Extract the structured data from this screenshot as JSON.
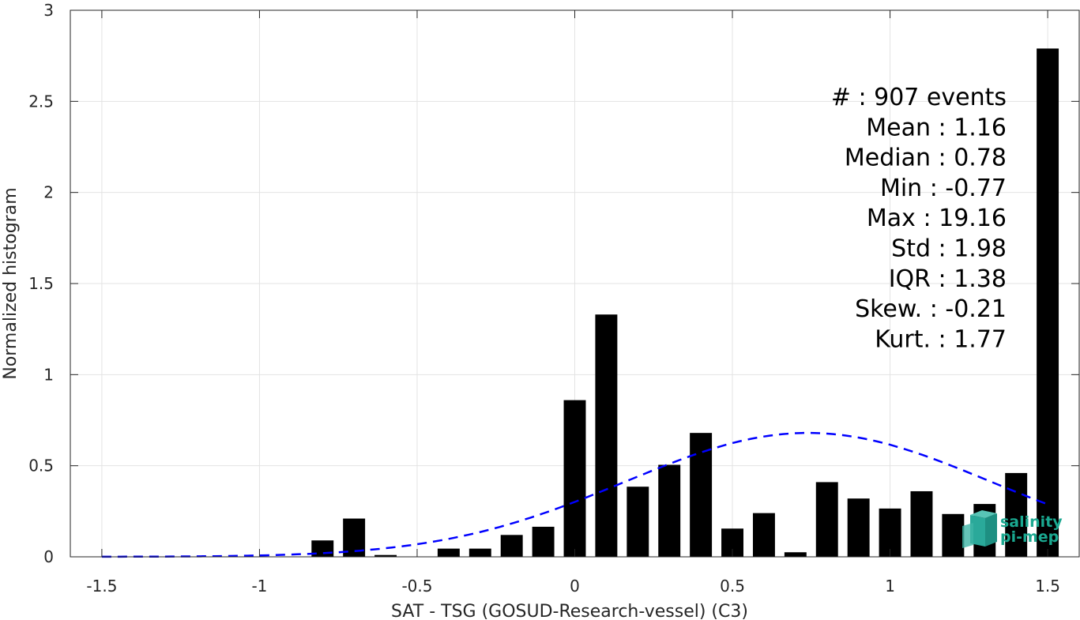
{
  "chart_data": {
    "type": "bar",
    "title": "",
    "xlabel": "SAT - TSG (GOSUD-Research-vessel) (C3)",
    "ylabel": "Normalized histogram",
    "xlim": [
      -1.6,
      1.6
    ],
    "ylim": [
      0,
      3
    ],
    "grid": true,
    "x_ticks": [
      -1.5,
      -1,
      -0.5,
      0,
      0.5,
      1,
      1.5
    ],
    "x_tick_labels": [
      "-1.5",
      "-1",
      "-0.5",
      "0",
      "0.5",
      "1",
      "1.5"
    ],
    "y_ticks": [
      0,
      0.5,
      1,
      1.5,
      2,
      2.5,
      3
    ],
    "y_tick_labels": [
      "0",
      "0.5",
      "1",
      "1.5",
      "2",
      "2.5",
      "3"
    ],
    "bar_width": 0.07,
    "bars": [
      {
        "x": -0.8,
        "value": 0.09
      },
      {
        "x": -0.7,
        "value": 0.21
      },
      {
        "x": -0.6,
        "value": 0.01
      },
      {
        "x": -0.5,
        "value": 0.0
      },
      {
        "x": -0.4,
        "value": 0.045
      },
      {
        "x": -0.3,
        "value": 0.045
      },
      {
        "x": -0.2,
        "value": 0.12
      },
      {
        "x": -0.1,
        "value": 0.165
      },
      {
        "x": 0.0,
        "value": 0.86
      },
      {
        "x": 0.1,
        "value": 1.33
      },
      {
        "x": 0.2,
        "value": 0.385
      },
      {
        "x": 0.3,
        "value": 0.505
      },
      {
        "x": 0.4,
        "value": 0.68
      },
      {
        "x": 0.5,
        "value": 0.155
      },
      {
        "x": 0.6,
        "value": 0.24
      },
      {
        "x": 0.7,
        "value": 0.025
      },
      {
        "x": 0.8,
        "value": 0.41
      },
      {
        "x": 0.9,
        "value": 0.32
      },
      {
        "x": 1.0,
        "value": 0.265
      },
      {
        "x": 1.1,
        "value": 0.36
      },
      {
        "x": 1.2,
        "value": 0.235
      },
      {
        "x": 1.3,
        "value": 0.29
      },
      {
        "x": 1.4,
        "value": 0.46
      },
      {
        "x": 1.5,
        "value": 2.79
      }
    ],
    "fit_curve": {
      "style": "dashed",
      "color": "#0000ff",
      "mean": 0.74,
      "std": 0.58,
      "peak": 0.68,
      "x_range": [
        -1.5,
        1.5
      ]
    },
    "bar_color": "#000000",
    "stats": [
      "#  : 907 events",
      "Mean : 1.16",
      "Median : 0.78",
      "Min : -0.77",
      "Max : 19.16",
      "Std : 1.98",
      "IQR : 1.38",
      "Skew. : -0.21",
      "Kurt. : 1.77"
    ]
  },
  "logo": {
    "line1": "salinity",
    "line2": "pi-mep",
    "color": "#1aa890"
  }
}
